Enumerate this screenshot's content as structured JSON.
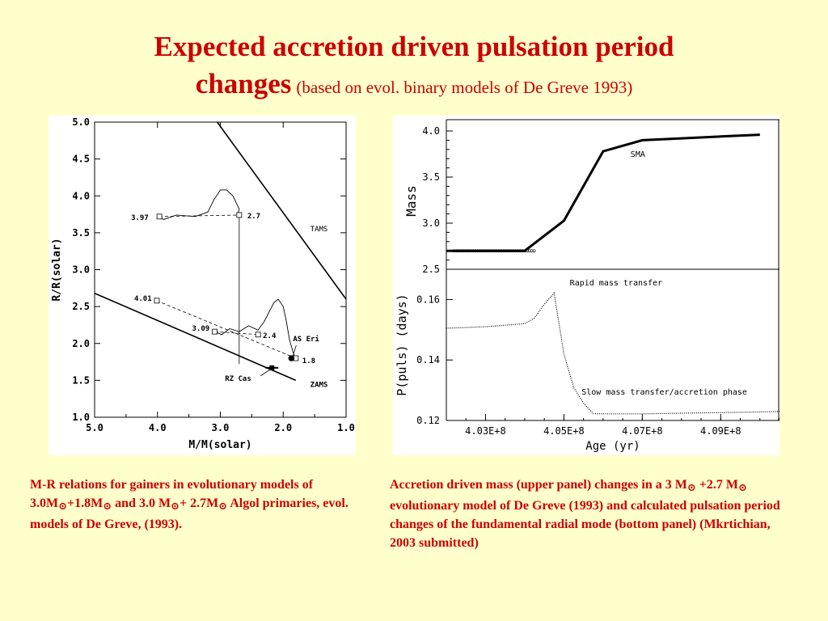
{
  "title": {
    "line1": "Expected accretion driven pulsation period",
    "line2_bold": "changes",
    "line2_rest": "(based on evol. binary models of De Greve 1993)"
  },
  "caption_left": {
    "p1": "M-R relations for gainers in   evolutionary models of  3.0M",
    "sun": "⊙",
    "p2": "+1.8M",
    "p3": " and 3.0 M",
    "p4": "+ 2.7M",
    "p5": " Algol primaries, evol. models of De Greve, (1993)."
  },
  "caption_right": {
    "p1": "Accretion     driven mass (upper panel) changes   in a  3 M",
    "sun": "⊙",
    "p2": " +2.7 M",
    "p3": "  evolutionary model of  De Greve (1993) and calculated pulsation period changes of the fundamental radial mode (bottom panel)  (Mkrtichian, 2003 submitted)"
  },
  "chart_data": [
    {
      "type": "line",
      "xlabel": "M/M(solar)",
      "ylabel": "R/R(solar)",
      "xlim": [
        5.0,
        1.0
      ],
      "ylim": [
        1.0,
        5.0
      ],
      "x_ticks": [
        "5.0",
        "4.0",
        "3.0",
        "2.0",
        "1.0"
      ],
      "y_ticks": [
        "1.0",
        "1.5",
        "2.0",
        "2.5",
        "3.0",
        "3.5",
        "4.0",
        "4.5",
        "5.0"
      ],
      "grid": false,
      "lines": [
        {
          "name": "TAMS",
          "x": [
            3.05,
            1.0
          ],
          "y": [
            5.0,
            2.6
          ]
        },
        {
          "name": "ZAMS",
          "x": [
            5.0,
            1.8
          ],
          "y": [
            2.68,
            1.5
          ]
        }
      ],
      "track_upper": {
        "x": [
          3.97,
          3.9,
          3.7,
          3.4,
          3.2,
          3.1,
          3.0,
          2.9,
          2.8,
          2.7,
          2.72,
          2.7
        ],
        "y": [
          3.72,
          3.68,
          3.74,
          3.72,
          3.78,
          3.95,
          4.08,
          4.08,
          4.0,
          3.82,
          3.75,
          3.74
        ]
      },
      "track_lower": {
        "x": [
          3.09,
          2.98,
          2.85,
          2.7,
          2.55,
          2.4,
          2.3,
          2.15,
          2.08,
          2.0,
          1.95,
          1.9,
          1.85,
          1.82,
          1.8
        ],
        "y": [
          2.16,
          2.12,
          2.2,
          2.16,
          2.24,
          2.18,
          2.3,
          2.55,
          2.6,
          2.5,
          2.3,
          2.05,
          1.9,
          1.82,
          1.8
        ]
      },
      "dashed": [
        {
          "x": [
            3.97,
            2.7
          ],
          "y": [
            3.72,
            3.74
          ]
        },
        {
          "x": [
            4.01,
            1.8
          ],
          "y": [
            2.58,
            1.8
          ]
        },
        {
          "x": [
            3.09,
            2.4
          ],
          "y": [
            2.16,
            2.12
          ]
        }
      ],
      "vertical_line": {
        "x": 2.7,
        "y": [
          1.72,
          3.74
        ]
      },
      "points": [
        {
          "label": "3.97",
          "x": 3.97,
          "y": 3.72
        },
        {
          "label": "2.7",
          "x": 2.7,
          "y": 3.74
        },
        {
          "label": "4.01",
          "x": 4.01,
          "y": 2.58
        },
        {
          "label": "3.09",
          "x": 3.09,
          "y": 2.16
        },
        {
          "label": "2.4",
          "x": 2.4,
          "y": 2.12
        },
        {
          "label": "1.8",
          "x": 1.8,
          "y": 1.8
        }
      ],
      "stars": [
        {
          "label": "AS  Eri",
          "x": 1.87,
          "y": 1.8
        },
        {
          "label": "RZ  Cas",
          "x": 2.18,
          "y": 1.67
        }
      ],
      "annotations": [
        "TAMS",
        "ZAMS"
      ]
    },
    {
      "type": "scatter",
      "ylabel": "Mass",
      "ylim": [
        2.5,
        4.0
      ],
      "y_ticks": [
        "2.5",
        "3.0",
        "3.5",
        "4.0"
      ],
      "annotation": "SMA",
      "x": [
        402000000.0,
        403000000.0,
        404000000.0,
        404500000.0,
        404800000.0,
        405100000.0,
        405400000.0,
        405700000.0,
        406000000.0,
        406500000.0,
        407000000.0,
        408000000.0,
        409000000.0,
        410000000.0,
        410500000.0
      ],
      "y": [
        2.7,
        2.7,
        2.7,
        2.72,
        2.88,
        3.1,
        3.3,
        3.5,
        3.78,
        3.86,
        3.9,
        3.92,
        3.94,
        3.96,
        3.97
      ]
    },
    {
      "type": "scatter",
      "xlabel": "Age  (yr)",
      "ylabel": "P(puls)  (days)",
      "xlim": [
        402000000.0,
        410500000.0
      ],
      "ylim": [
        0.12,
        0.17
      ],
      "x_ticks": [
        "4.03E+8",
        "4.05E+8",
        "4.07E+8",
        "4.09E+8"
      ],
      "y_ticks": [
        "0.12",
        "0.14",
        "0.16"
      ],
      "annotations": [
        "Rapid mass transfer",
        "Slow mass transfer/accretion phase"
      ],
      "x": [
        402000000.0,
        403000000.0,
        404000000.0,
        404400000.0,
        404700000.0,
        404900000.0,
        405000000.0,
        405100000.0,
        405200000.0,
        405400000.0,
        405600000.0,
        405800000.0,
        406000000.0,
        407000000.0,
        408000000.0,
        409000000.0,
        410000000.0,
        410500000.0
      ],
      "y": [
        0.1505,
        0.151,
        0.152,
        0.155,
        0.1655,
        0.152,
        0.142,
        0.136,
        0.1315,
        0.129,
        0.1225,
        0.1222,
        0.1222,
        0.1222,
        0.1224,
        0.1226,
        0.1228,
        0.123
      ]
    }
  ]
}
